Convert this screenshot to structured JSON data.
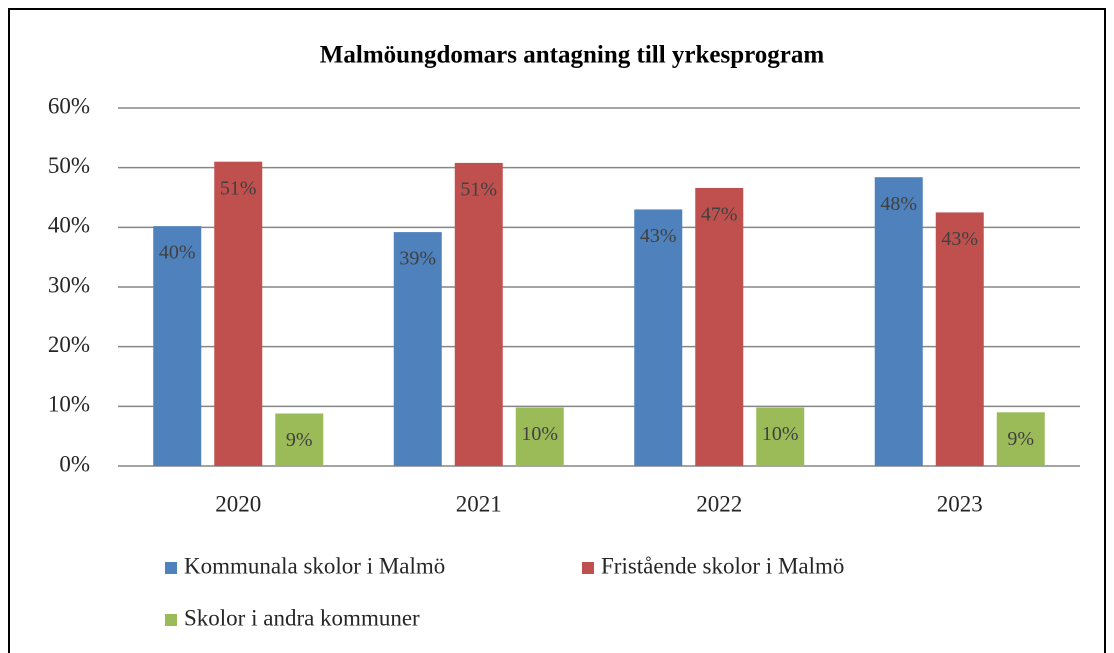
{
  "chart_data": {
    "type": "bar",
    "title": "Malmöungdomars antagning till yrkesprogram",
    "categories": [
      "2020",
      "2021",
      "2022",
      "2023"
    ],
    "series": [
      {
        "name": "Kommunala skolor i Malmö",
        "color": "#4f81bd",
        "values": [
          40.2,
          39.2,
          43,
          48.4
        ],
        "value_labels": [
          "40%",
          "39%",
          "43%",
          "48%"
        ]
      },
      {
        "name": "Fristående skolor i Malmö",
        "color": "#c0504d",
        "values": [
          51,
          50.8,
          46.6,
          42.5
        ],
        "value_labels": [
          "51%",
          "51%",
          "47%",
          "43%"
        ]
      },
      {
        "name": "Skolor i andra kommuner",
        "color": "#9bbb59",
        "values": [
          8.8,
          9.8,
          9.8,
          9
        ],
        "value_labels": [
          "9%",
          "10%",
          "10%",
          "9%"
        ]
      }
    ],
    "ylim": [
      0,
      60
    ],
    "yticks": [
      {
        "value": 0,
        "label": "0%"
      },
      {
        "value": 10,
        "label": "10%"
      },
      {
        "value": 20,
        "label": "20%"
      },
      {
        "value": 30,
        "label": "30%"
      },
      {
        "value": 40,
        "label": "40%"
      },
      {
        "value": 50,
        "label": "50%"
      },
      {
        "value": 60,
        "label": "60%"
      }
    ],
    "grid": true,
    "legend": "bottom"
  }
}
